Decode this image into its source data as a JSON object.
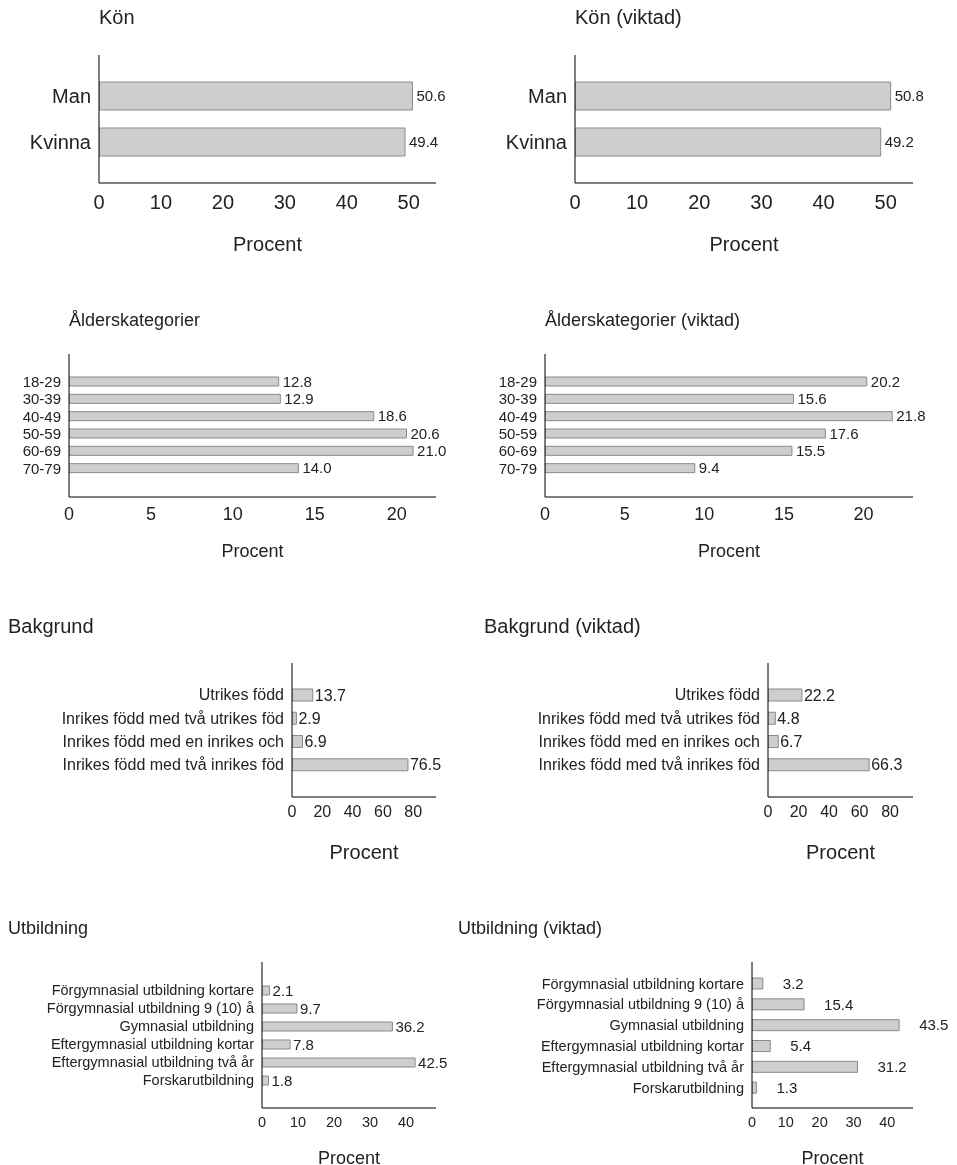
{
  "chart_data": [
    {
      "type": "bar",
      "orientation": "horizontal",
      "title": "Kön",
      "xlabel": "Procent",
      "categories": [
        "Man",
        "Kvinna"
      ],
      "values": [
        50.6,
        49.4
      ],
      "value_labels": [
        "50.6",
        "49.4"
      ],
      "color": "#cdced0",
      "xlim": [
        0,
        54.4
      ],
      "xticks": [
        0,
        10,
        20,
        30,
        40,
        50
      ]
    },
    {
      "type": "bar",
      "orientation": "horizontal",
      "title": "Kön (viktad)",
      "xlabel": "Procent",
      "categories": [
        "Man",
        "Kvinna"
      ],
      "values": [
        50.8,
        49.2
      ],
      "value_labels": [
        "50.8",
        "49.2"
      ],
      "color": "#cdced0",
      "xlim": [
        0,
        54.4
      ],
      "xticks": [
        0,
        10,
        20,
        30,
        40,
        50
      ]
    },
    {
      "type": "bar",
      "orientation": "horizontal",
      "title": "Ålderskategorier",
      "xlabel": "Procent",
      "categories": [
        "18-29",
        "30-39",
        "40-49",
        "50-59",
        "60-69",
        "70-79"
      ],
      "values": [
        12.8,
        12.9,
        18.6,
        20.6,
        21.0,
        14.0
      ],
      "value_labels": [
        "12.8",
        "12.9",
        "18.6",
        "20.6",
        "21.0",
        "14.0"
      ],
      "color": "#cdced0",
      "xlim": [
        0,
        22.4
      ],
      "xticks": [
        0,
        5,
        10,
        15,
        20
      ]
    },
    {
      "type": "bar",
      "orientation": "horizontal",
      "title": "Ålderskategorier (viktad)",
      "xlabel": "Procent",
      "categories": [
        "18-29",
        "30-39",
        "40-49",
        "50-59",
        "60-69",
        "70-79"
      ],
      "values": [
        20.2,
        15.6,
        21.8,
        17.6,
        15.5,
        9.4
      ],
      "value_labels": [
        "20.2",
        "15.6",
        "21.8",
        "17.6",
        "15.5",
        "9.4"
      ],
      "color": "#cdced0",
      "xlim": [
        0,
        23.1
      ],
      "xticks": [
        0,
        5,
        10,
        15,
        20
      ]
    },
    {
      "type": "bar",
      "orientation": "horizontal",
      "title": "Bakgrund",
      "xlabel": "Procent",
      "categories": [
        "Utrikes född",
        "Inrikes född med två utrikes föd",
        "Inrikes född med en inrikes och",
        "Inrikes född med två inrikes föd"
      ],
      "values": [
        13.7,
        2.9,
        6.9,
        76.5
      ],
      "value_labels": [
        "13.7",
        "2.9",
        "6.9",
        "76.5"
      ],
      "color": "#cdced0",
      "xlim": [
        0,
        95
      ],
      "xticks": [
        0,
        20,
        40,
        60,
        80
      ]
    },
    {
      "type": "bar",
      "orientation": "horizontal",
      "title": "Bakgrund (viktad)",
      "xlabel": "Procent",
      "categories": [
        "Utrikes född",
        "Inrikes född med två utrikes föd",
        "Inrikes född med en inrikes och",
        "Inrikes född med två inrikes föd"
      ],
      "values": [
        22.2,
        4.8,
        6.7,
        66.3
      ],
      "value_labels": [
        "22.2",
        "4.8",
        "6.7",
        "66.3"
      ],
      "color": "#cdced0",
      "xlim": [
        0,
        95
      ],
      "xticks": [
        0,
        20,
        40,
        60,
        80
      ]
    },
    {
      "type": "bar",
      "orientation": "horizontal",
      "title": "Utbildning",
      "xlabel": "Procent",
      "categories": [
        "Förgymnasial utbildning kortare",
        "Förgymnasial utbildning 9 (10) å",
        "Gymnasial utbildning",
        "Eftergymnasial utbildning kortar",
        "Eftergymnasial utbildning två år",
        "Forskarutbildning"
      ],
      "values": [
        2.1,
        9.7,
        36.2,
        7.8,
        42.5,
        1.8
      ],
      "value_labels": [
        "2.1",
        "9.7",
        "36.2",
        "7.8",
        "42.5",
        "1.8"
      ],
      "color": "#cdced0",
      "xlim": [
        0,
        48.3
      ],
      "xticks": [
        0,
        10,
        20,
        30,
        40
      ]
    },
    {
      "type": "bar",
      "orientation": "horizontal",
      "title": "Utbildning (viktad)",
      "xlabel": "Procent",
      "categories": [
        "Förgymnasial utbildning kortare",
        "Förgymnasial utbildning 9 (10) å",
        "Gymnasial utbildning",
        "Eftergymnasial utbildning kortar",
        "Eftergymnasial utbildning två år",
        "Forskarutbildning"
      ],
      "values": [
        3.2,
        15.4,
        43.5,
        5.4,
        31.2,
        1.3
      ],
      "value_labels": [
        "3.2",
        "15.4",
        "43.5",
        "5.4",
        "31.2",
        "1.3"
      ],
      "color": "#cdced0",
      "xlim": [
        0,
        47.6
      ],
      "xticks": [
        0,
        10,
        20,
        30,
        40
      ]
    }
  ]
}
